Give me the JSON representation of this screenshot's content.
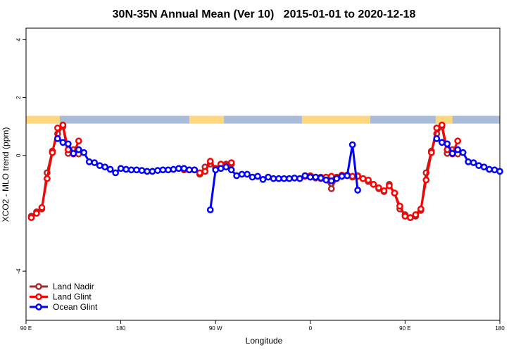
{
  "chart_data": {
    "type": "line",
    "title": "30N-35N Annual Mean (Ver 10)   2015-01-01 to 2020-12-18",
    "x_label": "Longitude",
    "y_label": "XCO2 - MLO trend (ppm)",
    "xlim": [
      90,
      540
    ],
    "ylim": [
      -5.7,
      4.4
    ],
    "xticks": [
      {
        "value": 90,
        "label": "90 E"
      },
      {
        "value": 180,
        "label": "180"
      },
      {
        "value": 270,
        "label": "90 W"
      },
      {
        "value": 360,
        "label": "0"
      },
      {
        "value": 450,
        "label": "90 E"
      },
      {
        "value": 540,
        "label": "180"
      }
    ],
    "yticks": [
      -4,
      0,
      2,
      4
    ],
    "legend": "bottom-left",
    "mask": {
      "y": [
        1.1,
        1.37
      ],
      "ocean_color": "#a8bcd8",
      "land_color": "#fcd77f",
      "land": [
        [
          90,
          122
        ],
        [
          245,
          278
        ],
        [
          352,
          417
        ],
        [
          479,
          495
        ]
      ]
    },
    "x": [
      90,
      95,
      100,
      105,
      110,
      115,
      120,
      125,
      130,
      135,
      140,
      145,
      150,
      155,
      160,
      165,
      170,
      175,
      180,
      185,
      190,
      195,
      200,
      205,
      210,
      215,
      220,
      225,
      230,
      235,
      240,
      245,
      250,
      255,
      260,
      265,
      270,
      275,
      280,
      285,
      290,
      295,
      300,
      305,
      310,
      315,
      320,
      325,
      330,
      335,
      340,
      345,
      350,
      355,
      360,
      365,
      370,
      375,
      380,
      385,
      390,
      395,
      400,
      405,
      410,
      415,
      420,
      425,
      430,
      435,
      440,
      445,
      450,
      455,
      460,
      465,
      470,
      475,
      480,
      485,
      490,
      495,
      500,
      505,
      510,
      515,
      520,
      525,
      530,
      535,
      540
    ],
    "series": [
      {
        "name": "Land Nadir",
        "color": "#a52a2a",
        "values": [
          null,
          -2.1,
          -1.95,
          -1.85,
          -0.6,
          0.15,
          0.75,
          1.0,
          0.07,
          0.2,
          0.05,
          null,
          null,
          null,
          null,
          null,
          null,
          null,
          null,
          null,
          null,
          null,
          null,
          null,
          null,
          null,
          null,
          null,
          null,
          null,
          null,
          null,
          null,
          -0.65,
          -0.4,
          -0.3,
          -0.45,
          -0.35,
          -0.3,
          -0.3,
          null,
          null,
          null,
          null,
          null,
          null,
          null,
          null,
          null,
          null,
          null,
          null,
          null,
          -0.7,
          -0.75,
          -0.78,
          -0.75,
          -0.8,
          -1.15,
          -0.78,
          -0.72,
          -0.68,
          -0.75,
          -0.7,
          -0.8,
          -0.9,
          -1.0,
          -1.15,
          -1.25,
          -1.0,
          -1.3,
          -1.85,
          -2.05,
          -2.15,
          -2.1,
          -1.9,
          -0.6,
          0.15,
          0.75,
          1.0,
          0.07,
          0.2,
          0.05,
          null,
          null,
          null,
          null,
          null,
          null,
          null,
          null
        ]
      },
      {
        "name": "Land Glint",
        "color": "#ff0000",
        "values": [
          null,
          -2.15,
          -2.0,
          -1.8,
          -0.8,
          0.1,
          0.95,
          1.05,
          0.2,
          0.05,
          0.5,
          null,
          null,
          null,
          null,
          null,
          null,
          null,
          null,
          null,
          null,
          null,
          null,
          null,
          null,
          null,
          null,
          null,
          null,
          null,
          -0.5,
          -0.5,
          -0.5,
          -0.6,
          -0.55,
          -0.2,
          -0.45,
          -0.3,
          -0.35,
          -0.25,
          null,
          null,
          null,
          null,
          null,
          null,
          null,
          null,
          null,
          null,
          null,
          null,
          null,
          -0.72,
          -0.7,
          -0.75,
          -0.8,
          -0.75,
          -0.72,
          -0.75,
          -0.68,
          -0.7,
          -0.72,
          -0.72,
          -0.8,
          -0.85,
          -1.0,
          -1.12,
          -1.22,
          -1.05,
          -1.3,
          -1.75,
          -2.1,
          -2.15,
          -2.05,
          -1.85,
          -0.85,
          0.1,
          0.95,
          1.05,
          0.2,
          0.05,
          0.5,
          null,
          null,
          null,
          null,
          null,
          null,
          null,
          null
        ]
      },
      {
        "name": "Ocean Glint",
        "color": "#0000ff",
        "values": [
          null,
          null,
          null,
          null,
          null,
          null,
          0.58,
          0.45,
          0.4,
          0.07,
          0.2,
          0.1,
          -0.22,
          -0.25,
          -0.35,
          -0.4,
          -0.48,
          -0.6,
          -0.45,
          -0.48,
          -0.5,
          -0.5,
          -0.52,
          -0.55,
          -0.55,
          -0.52,
          -0.5,
          -0.5,
          -0.48,
          -0.45,
          -0.45,
          -0.5,
          -0.5,
          null,
          null,
          -1.88,
          -0.5,
          -0.45,
          -0.4,
          -0.5,
          -0.7,
          -0.65,
          -0.65,
          -0.75,
          -0.72,
          -0.83,
          -0.75,
          -0.8,
          -0.8,
          -0.8,
          -0.8,
          -0.78,
          -0.8,
          -0.7,
          -0.75,
          -0.75,
          -0.78,
          -0.85,
          -0.88,
          -0.8,
          -0.72,
          -0.7,
          0.37,
          -1.2,
          null,
          null,
          null,
          null,
          null,
          null,
          null,
          null,
          null,
          null,
          null,
          null,
          null,
          null,
          0.58,
          0.45,
          0.4,
          0.07,
          0.2,
          0.1,
          -0.22,
          -0.25,
          -0.35,
          -0.4,
          -0.48,
          -0.5,
          -0.55
        ]
      }
    ]
  }
}
